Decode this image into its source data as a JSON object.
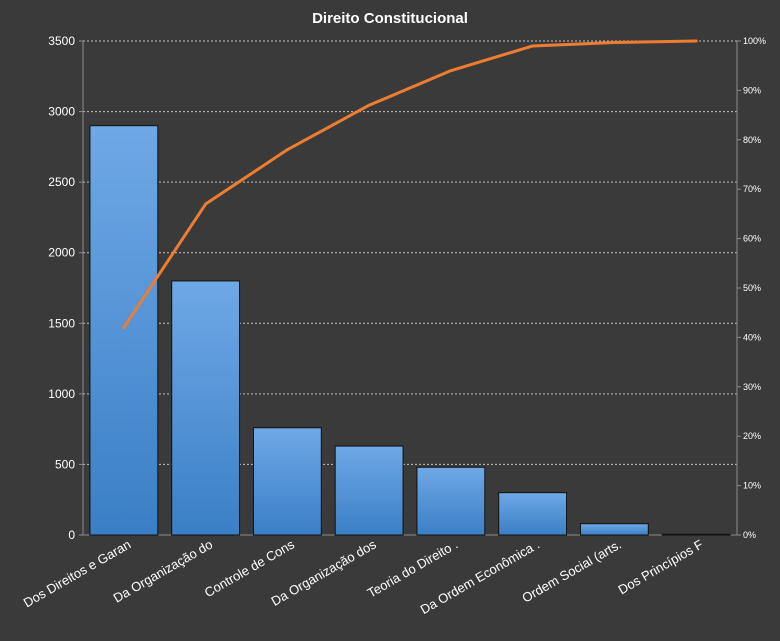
{
  "chart_data": {
    "type": "bar",
    "title": "Direito  Constitucional",
    "categories": [
      "Dos Direitos e Garan",
      "Da Organização do",
      "Controle de Cons",
      "Da Organização dos",
      "Teoria do Direito .",
      "Da Ordem Econômica .",
      "Ordem Social (arts.",
      "Dos Princípios F"
    ],
    "series": [
      {
        "type": "bar",
        "values": [
          2900,
          1800,
          760,
          630,
          480,
          300,
          80,
          5
        ]
      },
      {
        "type": "line",
        "axis": "right",
        "values": [
          0.42,
          0.67,
          0.78,
          0.87,
          0.94,
          0.99,
          0.997,
          1.0
        ]
      }
    ],
    "ylim": [
      0,
      3500
    ],
    "yticks": [
      0,
      500,
      1000,
      1500,
      2000,
      2500,
      3000,
      3500
    ],
    "y2lim": [
      0,
      1
    ],
    "y2ticks": [
      "0%",
      "10%",
      "20%",
      "30%",
      "40%",
      "50%",
      "60%",
      "70%",
      "80%",
      "90%",
      "100%"
    ],
    "grid": true,
    "legend": "none",
    "colors": {
      "background": "#3b3a3a",
      "bar_top": "#6fa8e6",
      "bar_bottom": "#3a7fc6",
      "bar_border": "#111111",
      "line": "#ed7d31",
      "grid": "#bfbfbf",
      "text": "#ffffff"
    }
  }
}
